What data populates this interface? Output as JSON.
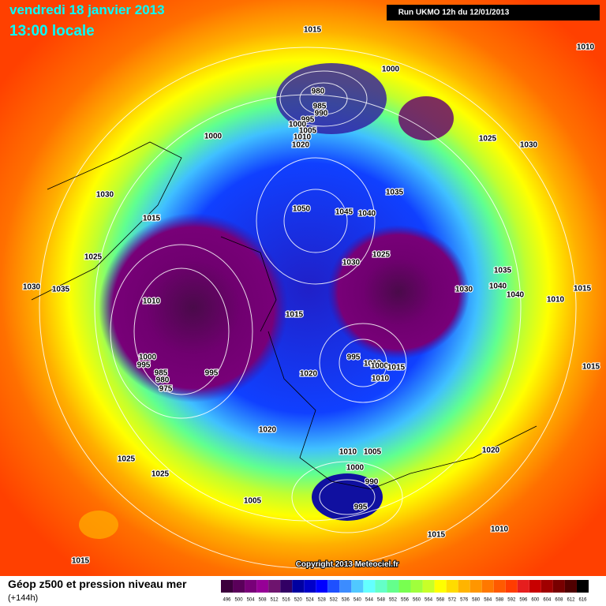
{
  "header": {
    "date": "vendredi 18 janvier 2013",
    "time": "13:00 locale",
    "run": "Run UKMO 12h du 12/01/2013"
  },
  "copyright": "Copyright 2013 Meteociel.fr",
  "legend": {
    "title": "Géop z500 et pression niveau mer",
    "subtitle": "(+144h)",
    "values": [
      496,
      500,
      504,
      508,
      512,
      516,
      520,
      524,
      528,
      532,
      536,
      540,
      544,
      548,
      552,
      556,
      560,
      564,
      568,
      572,
      576,
      580,
      584,
      588,
      592,
      596,
      600,
      604,
      608,
      612,
      616
    ],
    "colors": [
      "#3c003c",
      "#5a005a",
      "#780078",
      "#960096",
      "#6e146e",
      "#320064",
      "#0000a0",
      "#0000c8",
      "#0000ff",
      "#1e50ff",
      "#3c8cff",
      "#50c8ff",
      "#64ffff",
      "#64ffc8",
      "#64ff8c",
      "#78ff50",
      "#a0ff3c",
      "#c8ff28",
      "#ffff00",
      "#ffdc00",
      "#ffb400",
      "#ff9600",
      "#ff7800",
      "#ff5a00",
      "#ff3c00",
      "#e61e1e",
      "#c80000",
      "#a00000",
      "#780000",
      "#500000",
      "#000000"
    ]
  },
  "isobars": [
    1015,
    1000,
    1010,
    980,
    985,
    990,
    995,
    1000,
    1005,
    1010,
    1020,
    1000,
    1025,
    1030,
    1030,
    1015,
    1035,
    1050,
    1045,
    1040,
    1025,
    1030,
    1025,
    1030,
    1035,
    1035,
    1040,
    1040,
    1030,
    1010,
    1015,
    1010,
    1015,
    1000,
    995,
    985,
    980,
    975,
    995,
    995,
    1010,
    1000,
    1015,
    1010,
    1020,
    1015,
    1020,
    1020,
    1010,
    1005,
    1025,
    1025,
    1000,
    990,
    1005,
    995,
    1010,
    1015,
    1015
  ]
}
